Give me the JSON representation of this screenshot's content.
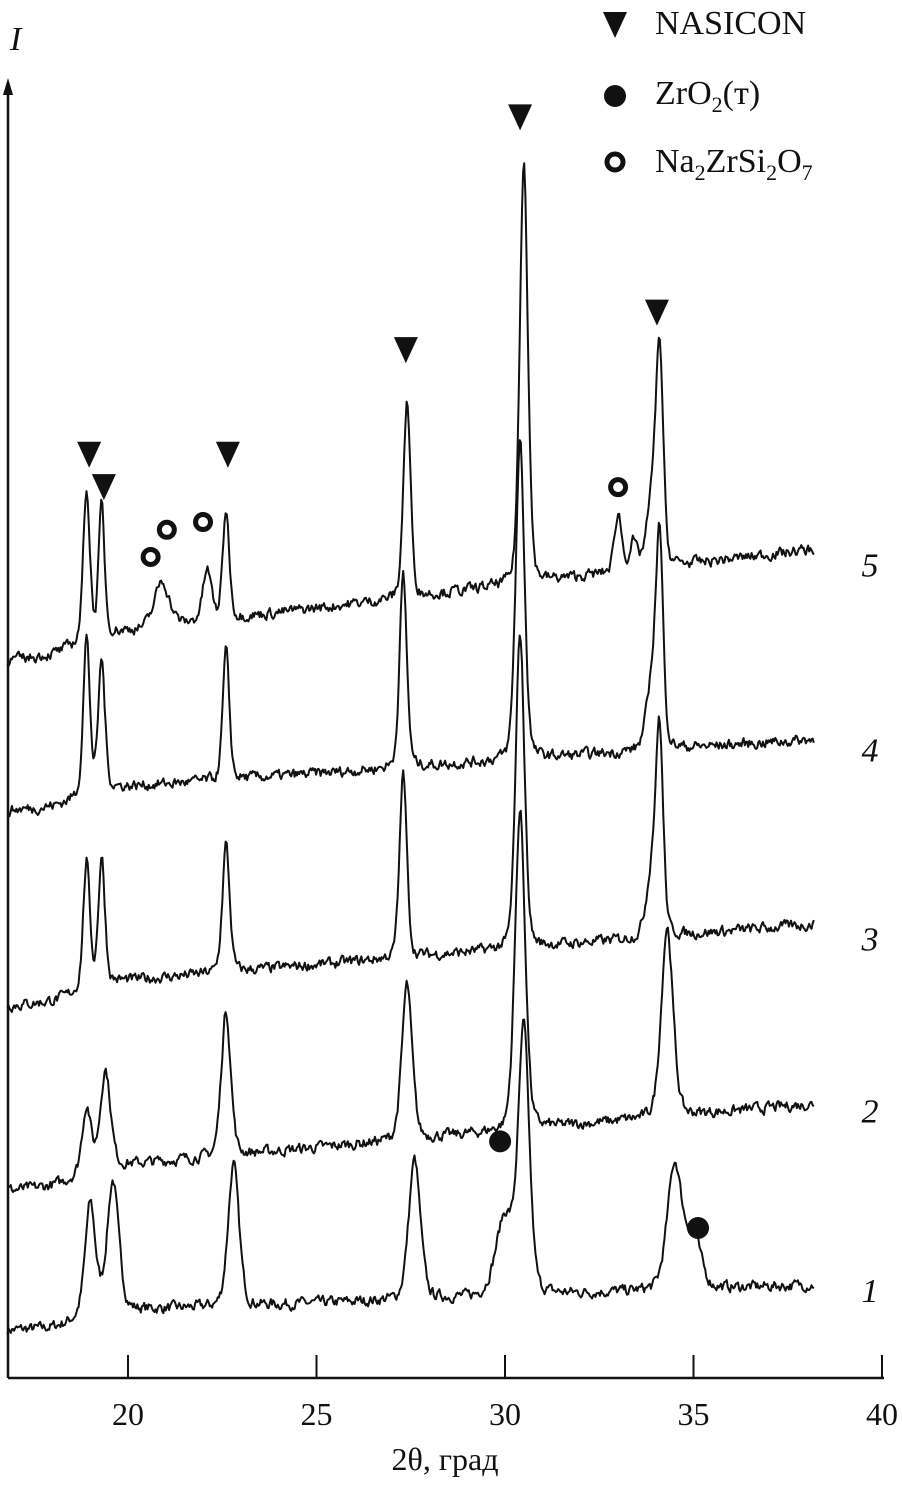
{
  "chart_data": {
    "type": "line",
    "xlabel": "2θ, град",
    "ylabel": "I",
    "xlim": [
      16.8,
      40
    ],
    "ylim": [
      0,
      100
    ],
    "xticks": [
      20,
      25,
      30,
      35,
      40
    ],
    "grid": false,
    "legend_position": "top-right",
    "legend": [
      {
        "symbol": "filled-triangle-down",
        "label": "NASICON"
      },
      {
        "symbol": "filled-circle",
        "label": "ZrO",
        "sub": "2",
        "suffix": "(т)"
      },
      {
        "symbol": "open-circle",
        "label_parts": [
          "Na",
          "2",
          "ZrSi",
          "2",
          "O",
          "7"
        ]
      }
    ],
    "x_range_measured": [
      16.8,
      38.2
    ],
    "series": [
      {
        "name": "1",
        "baseline": [
          3.7,
          6.0
        ],
        "peaks": [
          [
            19.0,
            8.5,
            0.14
          ],
          [
            19.6,
            10.0,
            0.16
          ],
          [
            22.8,
            11.0,
            0.15
          ],
          [
            27.6,
            10.8,
            0.16
          ],
          [
            30.0,
            6.0,
            0.25
          ],
          [
            30.5,
            20.1,
            0.15
          ],
          [
            34.5,
            9.7,
            0.2
          ],
          [
            35.0,
            4.0,
            0.2
          ]
        ]
      },
      {
        "name": "2",
        "baseline": [
          14.5,
          20.0
        ],
        "peaks": [
          [
            18.9,
            5.0,
            0.12
          ],
          [
            19.4,
            7.5,
            0.14
          ],
          [
            22.6,
            11.2,
            0.13
          ],
          [
            27.4,
            12.0,
            0.14
          ],
          [
            30.4,
            24.7,
            0.14
          ],
          [
            34.3,
            14.7,
            0.16
          ]
        ]
      },
      {
        "name": "3",
        "baseline": [
          28.8,
          33.9
        ],
        "peaks": [
          [
            18.9,
            9.7,
            0.09
          ],
          [
            19.3,
            9.7,
            0.09
          ],
          [
            22.6,
            9.9,
            0.1
          ],
          [
            27.3,
            14.3,
            0.1
          ],
          [
            30.4,
            24.4,
            0.12
          ],
          [
            33.9,
            5.0,
            0.15
          ],
          [
            34.1,
            15.0,
            0.1
          ]
        ]
      },
      {
        "name": "4",
        "baseline": [
          43.9,
          48.2
        ],
        "peaks": [
          [
            18.9,
            12.0,
            0.09
          ],
          [
            19.3,
            10.0,
            0.09
          ],
          [
            22.6,
            10.0,
            0.09
          ],
          [
            27.3,
            14.9,
            0.1
          ],
          [
            30.4,
            24.7,
            0.12
          ],
          [
            33.9,
            5.0,
            0.15
          ],
          [
            34.1,
            15.5,
            0.1
          ]
        ]
      },
      {
        "name": "5",
        "baseline": [
          55.5,
          62.9
        ],
        "peaks": [
          [
            18.9,
            11.6,
            0.09
          ],
          [
            19.3,
            10.0,
            0.08
          ],
          [
            20.9,
            3.5,
            0.2
          ],
          [
            22.1,
            3.9,
            0.12
          ],
          [
            22.6,
            8.4,
            0.09
          ],
          [
            27.4,
            15.1,
            0.1
          ],
          [
            30.5,
            32.9,
            0.11
          ],
          [
            33.0,
            4.5,
            0.1
          ],
          [
            33.4,
            2.0,
            0.1
          ],
          [
            33.9,
            5.0,
            0.15
          ],
          [
            34.1,
            16.0,
            0.1
          ]
        ]
      }
    ],
    "annotations": [
      {
        "symbol": "filled-triangle-down",
        "phase": "NASICON",
        "x": 18.97,
        "y": 71.4
      },
      {
        "symbol": "filled-triangle-down",
        "phase": "NASICON",
        "x": 19.36,
        "y": 68.9
      },
      {
        "symbol": "filled-triangle-down",
        "phase": "NASICON",
        "x": 22.65,
        "y": 71.4
      },
      {
        "symbol": "filled-triangle-down",
        "phase": "NASICON",
        "x": 27.37,
        "y": 79.5
      },
      {
        "symbol": "filled-triangle-down",
        "phase": "NASICON",
        "x": 30.4,
        "y": 97.5
      },
      {
        "symbol": "filled-triangle-down",
        "phase": "NASICON",
        "x": 34.03,
        "y": 82.4
      },
      {
        "symbol": "open-circle",
        "phase": "Na2ZrSi2O7",
        "x": 20.6,
        "y": 63.5
      },
      {
        "symbol": "open-circle",
        "phase": "Na2ZrSi2O7",
        "x": 21.03,
        "y": 65.6
      },
      {
        "symbol": "open-circle",
        "phase": "Na2ZrSi2O7",
        "x": 21.99,
        "y": 66.2
      },
      {
        "symbol": "open-circle",
        "phase": "Na2ZrSi2O7",
        "x": 33.0,
        "y": 68.9
      },
      {
        "symbol": "filled-circle",
        "phase": "ZrO2(т)",
        "x": 29.87,
        "y": 18.3
      },
      {
        "symbol": "filled-circle",
        "phase": "ZrO2(т)",
        "x": 35.12,
        "y": 11.6
      }
    ],
    "curve_labels": [
      {
        "text": "5",
        "y": 62.9
      },
      {
        "text": "4",
        "y": 48.6
      },
      {
        "text": "3",
        "y": 34.0
      },
      {
        "text": "2",
        "y": 20.7
      },
      {
        "text": "1",
        "y": 6.8
      }
    ]
  }
}
